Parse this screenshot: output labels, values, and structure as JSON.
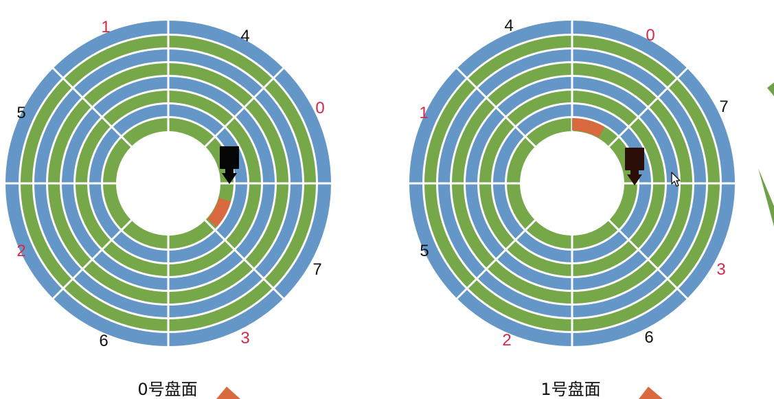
{
  "colors": {
    "track_blue": "#6497c8",
    "track_green": "#76a84a",
    "separator": "#ffffff",
    "highlight_sector": "#d9693f",
    "head_left": "#050505",
    "head_right": "#2b0e08",
    "red_label": "#d42a4a",
    "black_label": "#111111",
    "deco_green": "#6fa248",
    "deco_orange": "#d9693f"
  },
  "platters": [
    {
      "caption": "0号盘面",
      "labels": [
        {
          "text": "1",
          "color": "red"
        },
        {
          "text": "4",
          "color": "black"
        },
        {
          "text": "0",
          "color": "red"
        },
        {
          "text": "7",
          "color": "black"
        },
        {
          "text": "3",
          "color": "red"
        },
        {
          "text": "6",
          "color": "black"
        },
        {
          "text": "2",
          "color": "red"
        },
        {
          "text": "5",
          "color": "black"
        }
      ]
    },
    {
      "caption": "1号盘面",
      "labels": [
        {
          "text": "4",
          "color": "black"
        },
        {
          "text": "0",
          "color": "red"
        },
        {
          "text": "7",
          "color": "black"
        },
        {
          "text": "3",
          "color": "red"
        },
        {
          "text": "6",
          "color": "black"
        },
        {
          "text": "2",
          "color": "red"
        },
        {
          "text": "5",
          "color": "black"
        },
        {
          "text": "1",
          "color": "red"
        }
      ]
    }
  ]
}
